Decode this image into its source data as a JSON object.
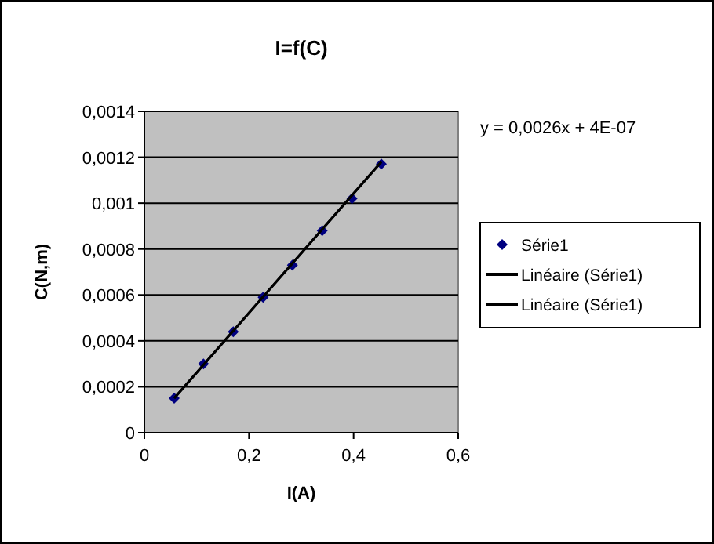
{
  "chart_data": {
    "type": "scatter",
    "title": "I=f(C)",
    "xlabel": "I(A)",
    "ylabel": "C(N,m)",
    "xlim": [
      0,
      0.6
    ],
    "xticks": [
      0,
      {
        "value": 0.2,
        "label": "0,2"
      },
      {
        "value": 0.4,
        "label": "0,4"
      },
      {
        "value": 0.6,
        "label": "0,6"
      }
    ],
    "ylim": [
      0,
      0.0014
    ],
    "yticks": [
      {
        "value": 0,
        "label": "0"
      },
      {
        "value": 0.0002,
        "label": "0,0002"
      },
      {
        "value": 0.0004,
        "label": "0,0004"
      },
      {
        "value": 0.0006,
        "label": "0,0006"
      },
      {
        "value": 0.0008,
        "label": "0,0008"
      },
      {
        "value": 0.001,
        "label": "0,001"
      },
      {
        "value": 0.0012,
        "label": "0,0012"
      },
      {
        "value": 0.0014,
        "label": "0,0014"
      }
    ],
    "grid": "y",
    "legend": "right",
    "annotations": [
      "y = 0,0026x + 4E-07"
    ],
    "series": [
      {
        "name": "Série1",
        "marker": "diamond",
        "color": "#000080",
        "x": [
          0.057,
          0.113,
          0.17,
          0.227,
          0.283,
          0.34,
          0.397,
          0.453
        ],
        "values": [
          0.00015,
          0.0003,
          0.00044,
          0.00059,
          0.00073,
          0.00088,
          0.00102,
          0.00117
        ]
      },
      {
        "name": "Linéaire (Série1)",
        "type": "line",
        "marker": "none",
        "color": "#000000",
        "x": [
          0.057,
          0.453
        ],
        "values": [
          0.00015,
          0.00118
        ]
      },
      {
        "name": "Linéaire (Série1)",
        "type": "line",
        "marker": "none",
        "color": "#000000",
        "x": [
          0.057,
          0.453
        ],
        "values": [
          0.00015,
          0.00118
        ]
      }
    ]
  }
}
